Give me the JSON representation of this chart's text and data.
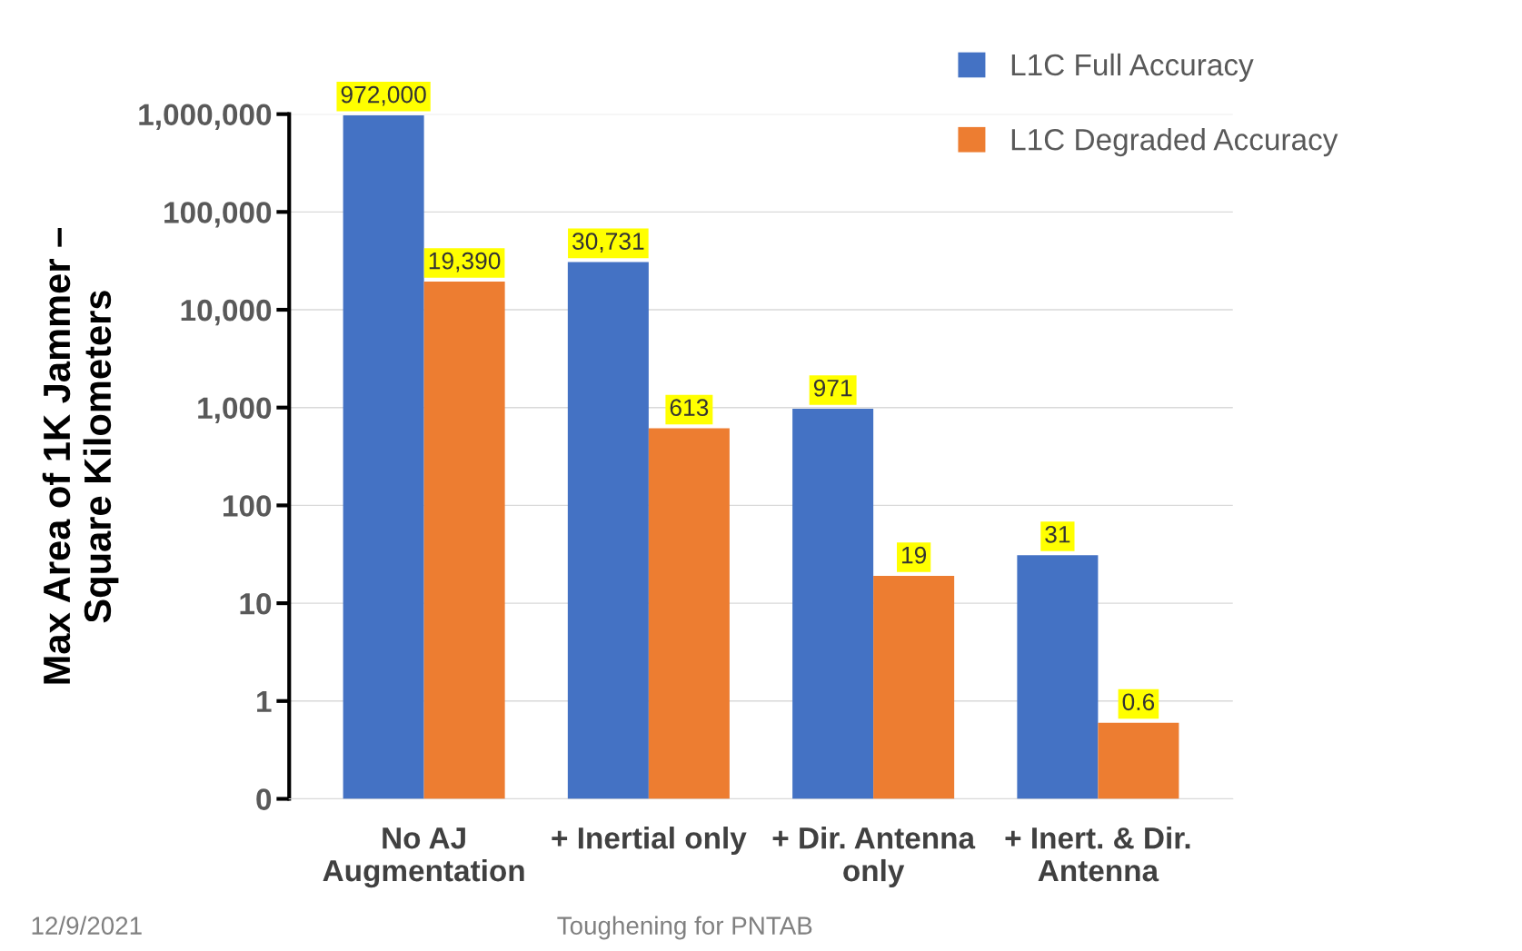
{
  "chart_data": {
    "type": "bar",
    "ylabel": "Max Area of 1K Jammer –\nSquare Kilometers",
    "categories": [
      "No AJ\nAugmentation",
      "+ Inertial only",
      "+ Dir. Antenna\nonly",
      "+ Inert. & Dir.\nAntenna"
    ],
    "series": [
      {
        "name": "L1C Full Accuracy",
        "color": "#4472c4",
        "values": [
          972000,
          30731,
          971,
          31
        ],
        "value_labels": [
          "972,000",
          "30,731",
          "971",
          "31"
        ]
      },
      {
        "name": "L1C Degraded Accuracy",
        "color": "#ed7d31",
        "values": [
          19390,
          613,
          19,
          0.6
        ],
        "value_labels": [
          "19,390",
          "613",
          "19",
          "0.6"
        ]
      }
    ],
    "log": true,
    "ylim": [
      0.1,
      1000000
    ],
    "yticks": [
      {
        "value": 0.1,
        "label": "0"
      },
      {
        "value": 1,
        "label": "1"
      },
      {
        "value": 10,
        "label": "10"
      },
      {
        "value": 100,
        "label": "100"
      },
      {
        "value": 1000,
        "label": "1,000"
      },
      {
        "value": 10000,
        "label": "10,000"
      },
      {
        "value": 100000,
        "label": "100,000"
      },
      {
        "value": 1000000,
        "label": "1,000,000"
      }
    ],
    "grid": "y",
    "legend": "top right",
    "annotations": [
      "Toughening for PNTAB",
      "12/9/2021"
    ]
  }
}
